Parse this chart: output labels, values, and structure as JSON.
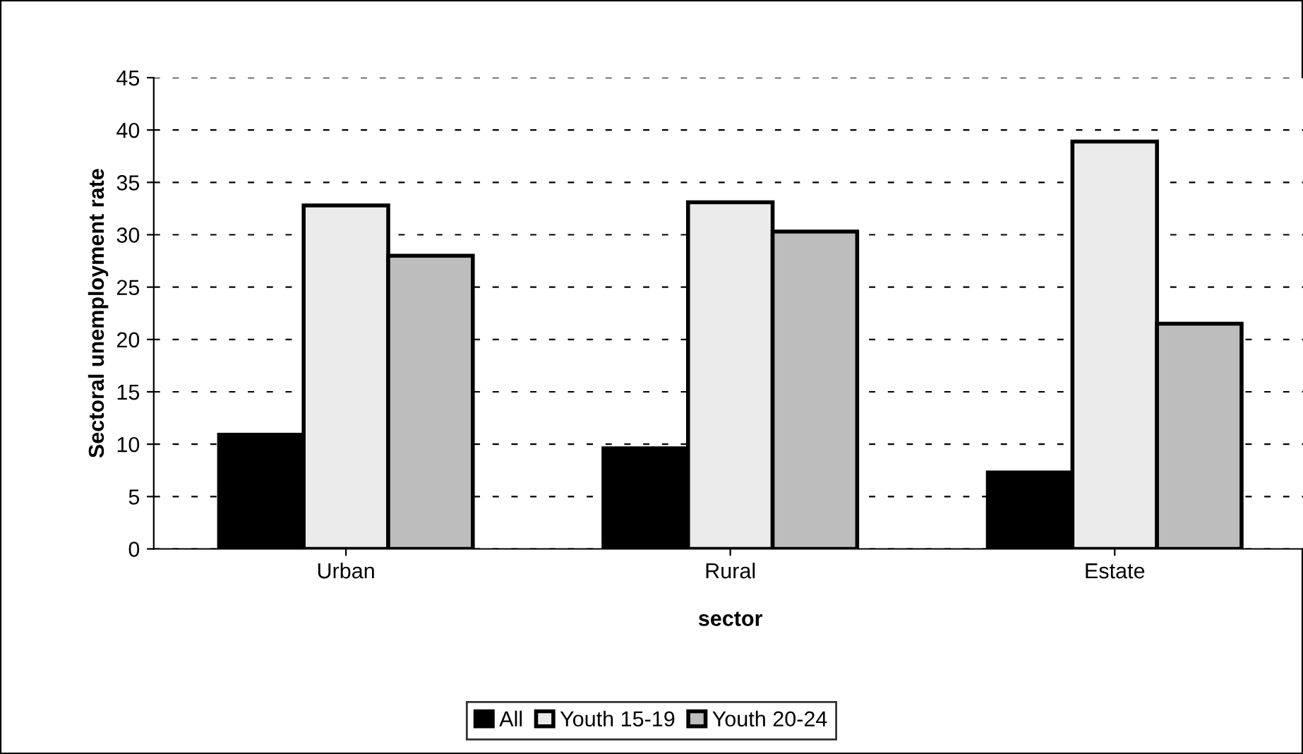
{
  "chart_data": {
    "type": "bar",
    "xlabel": "sector",
    "ylabel": "Sectoral unemployment rate",
    "categories": [
      "Urban",
      "Rural",
      "Estate"
    ],
    "series": [
      {
        "name": "All",
        "color": "#000000",
        "values": [
          10.9,
          9.6,
          7.3
        ]
      },
      {
        "name": "Youth 15-19",
        "color": "#ebebeb",
        "values": [
          32.8,
          33.1,
          38.9
        ]
      },
      {
        "name": "Youth 20-24",
        "color": "#bdbdbd",
        "values": [
          28.0,
          30.3,
          21.5
        ]
      }
    ],
    "ylim": [
      0,
      45
    ],
    "yticks": [
      0,
      5,
      10,
      15,
      20,
      25,
      30,
      35,
      40,
      45
    ],
    "grid": "y",
    "legend": "bottom"
  }
}
